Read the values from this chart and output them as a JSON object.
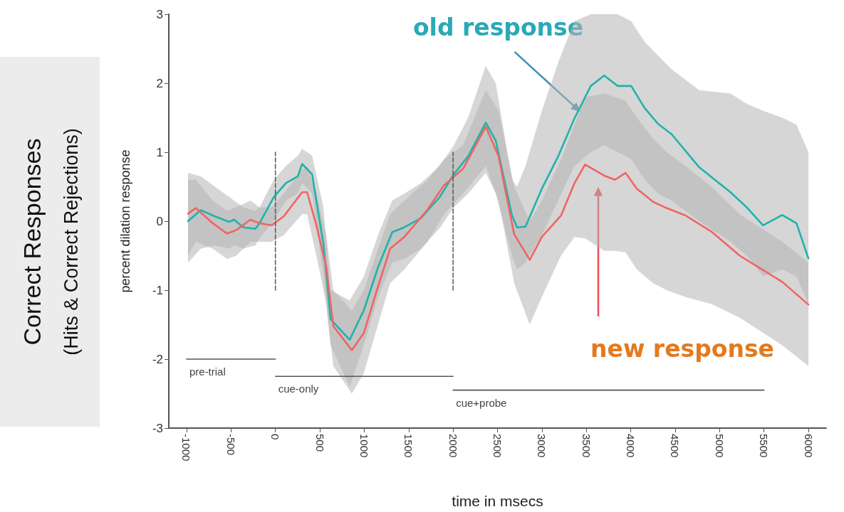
{
  "chart_data": {
    "type": "line",
    "title": "Correct Responses",
    "subtitle": "(Hits & Correct Rejections)",
    "xlabel": "time in msecs",
    "ylabel": "percent dilation response",
    "xlim": [
      -1200,
      6200
    ],
    "xticks": [
      -1000,
      -500,
      0,
      500,
      1000,
      1500,
      2000,
      2500,
      3000,
      3500,
      4000,
      4500,
      5000,
      5500,
      6000
    ],
    "ylim": [
      -3,
      3
    ],
    "yticks": [
      -3,
      -2,
      -1,
      0,
      1,
      2,
      3
    ],
    "marker": "none",
    "line_style": "solid",
    "series": [
      {
        "color": "#1fb3aa",
        "x": [
          -984,
          -840,
          -681,
          -521,
          -465,
          -361,
          -226,
          -178,
          -18,
          117,
          253,
          301,
          413,
          541,
          620,
          836,
          996,
          1155,
          1315,
          1450,
          1634,
          1850,
          2009,
          2169,
          2368,
          2480,
          2664,
          2720,
          2815,
          2999,
          3183,
          3366,
          3550,
          3701,
          3853,
          4005,
          4156,
          4308,
          4460,
          4771,
          5122,
          5306,
          5489,
          5705,
          5865,
          6000
        ],
        "values": [
          0,
          0.16,
          0.07,
          -0.01,
          0.02,
          -0.09,
          -0.11,
          -0.03,
          0.35,
          0.55,
          0.65,
          0.83,
          0.68,
          -0.34,
          -1.42,
          -1.72,
          -1.29,
          -0.67,
          -0.16,
          -0.09,
          0.04,
          0.35,
          0.68,
          0.94,
          1.43,
          1.17,
          0.08,
          -0.09,
          -0.08,
          0.47,
          0.94,
          1.49,
          1.96,
          2.11,
          1.96,
          1.96,
          1.64,
          1.41,
          1.26,
          0.78,
          0.42,
          0.2,
          -0.06,
          0.09,
          -0.03,
          -0.54
        ],
        "upper": [
          0.7,
          0.65,
          0.5,
          0.35,
          0.3,
          0.2,
          0.15,
          0.2,
          0.6,
          0.8,
          0.95,
          1.05,
          0.95,
          0.2,
          -1.0,
          -1.15,
          -0.8,
          -0.2,
          0.3,
          0.4,
          0.55,
          0.8,
          1.1,
          1.5,
          2.25,
          2.0,
          0.6,
          0.5,
          0.8,
          1.6,
          2.3,
          2.9,
          3.0,
          3.0,
          3.0,
          2.9,
          2.6,
          2.4,
          2.2,
          1.9,
          1.85,
          1.7,
          1.6,
          1.5,
          1.4,
          1.0
        ],
        "lower": [
          -0.6,
          -0.4,
          -0.35,
          -0.4,
          -0.35,
          -0.4,
          -0.35,
          -0.25,
          0.0,
          0.3,
          0.4,
          0.55,
          0.4,
          -0.8,
          -1.8,
          -2.4,
          -1.8,
          -1.1,
          -0.6,
          -0.55,
          -0.4,
          -0.1,
          0.2,
          0.4,
          0.7,
          0.4,
          -0.5,
          -0.7,
          -0.6,
          -0.2,
          0.3,
          0.8,
          1.0,
          1.1,
          1.0,
          0.9,
          0.6,
          0.4,
          0.3,
          0.0,
          -0.3,
          -0.5,
          -0.8,
          -0.7,
          -0.8,
          -1.2
        ]
      },
      {
        "color": "#f06464",
        "x": [
          -984,
          -896,
          -705,
          -545,
          -441,
          -282,
          -178,
          -42,
          94,
          301,
          357,
          461,
          573,
          652,
          860,
          996,
          1155,
          1291,
          1450,
          1714,
          1898,
          2113,
          2368,
          2512,
          2688,
          2863,
          2999,
          3215,
          3366,
          3486,
          3701,
          3821,
          3941,
          4069,
          4252,
          4404,
          4619,
          4907,
          5226,
          5705,
          6000
        ],
        "values": [
          0.11,
          0.19,
          -0.03,
          -0.18,
          -0.13,
          0.02,
          -0.03,
          -0.06,
          0.07,
          0.42,
          0.42,
          -0.06,
          -0.67,
          -1.52,
          -1.87,
          -1.62,
          -0.95,
          -0.4,
          -0.23,
          0.17,
          0.52,
          0.76,
          1.37,
          0.94,
          -0.19,
          -0.56,
          -0.23,
          0.08,
          0.55,
          0.82,
          0.66,
          0.6,
          0.7,
          0.47,
          0.28,
          0.19,
          0.08,
          -0.15,
          -0.5,
          -0.88,
          -1.21
        ],
        "upper": [
          0.6,
          0.6,
          0.3,
          0.15,
          0.2,
          0.3,
          0.2,
          0.2,
          0.4,
          0.75,
          0.8,
          0.4,
          -0.2,
          -1.0,
          -1.3,
          -1.0,
          -0.4,
          0.1,
          0.3,
          0.6,
          0.9,
          1.1,
          1.9,
          1.6,
          0.5,
          0.0,
          0.3,
          0.9,
          1.4,
          1.8,
          1.85,
          1.8,
          1.75,
          1.5,
          1.2,
          1.0,
          0.8,
          0.5,
          0.1,
          -0.3,
          -0.6
        ],
        "lower": [
          -0.5,
          -0.3,
          -0.4,
          -0.55,
          -0.5,
          -0.3,
          -0.3,
          -0.3,
          -0.2,
          0.1,
          0.1,
          -0.5,
          -1.2,
          -2.1,
          -2.5,
          -2.2,
          -1.5,
          -0.9,
          -0.7,
          -0.3,
          0.1,
          0.4,
          0.8,
          0.3,
          -0.9,
          -1.5,
          -1.1,
          -0.5,
          -0.23,
          -0.25,
          -0.43,
          -0.43,
          -0.45,
          -0.7,
          -0.9,
          -1.0,
          -1.1,
          -1.2,
          -1.4,
          -1.8,
          -2.1
        ]
      },
      {
        "color": "#555555",
        "line_style": "dashed",
        "x": [
          0,
          0
        ],
        "values": [
          -1,
          1
        ]
      },
      {
        "color": "#555555",
        "line_style": "dashed",
        "x": [
          2000,
          2000
        ],
        "values": [
          -1,
          1
        ]
      },
      {
        "name": "pre-trial",
        "color": "#555555",
        "x": [
          -1000,
          0
        ],
        "values": [
          -2,
          -2
        ]
      },
      {
        "name": "cue-only",
        "color": "#555555",
        "x": [
          0,
          2000
        ],
        "values": [
          -2.25,
          -2.25
        ]
      },
      {
        "name": "cue+probe",
        "color": "#555555",
        "x": [
          2000,
          5500
        ],
        "values": [
          -2.45,
          -2.45
        ]
      }
    ],
    "annotations": [
      {
        "text": "old response",
        "x": 3430,
        "y": 1.65
      },
      "new response"
    ]
  }
}
